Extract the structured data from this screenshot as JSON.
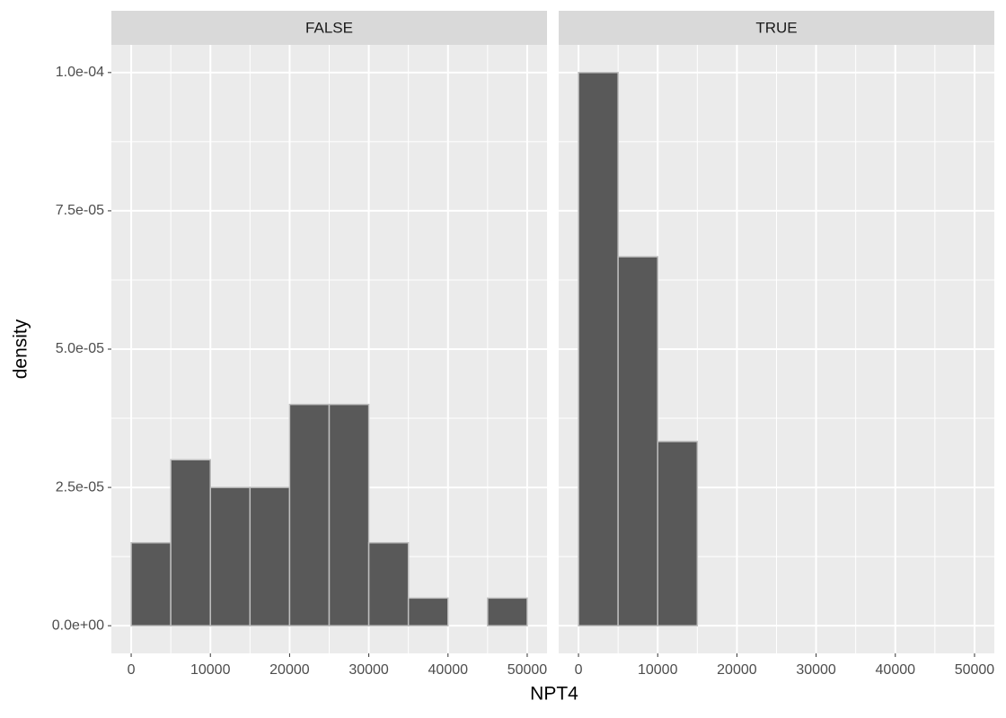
{
  "chart_data": {
    "type": "histogram",
    "x_label": "NPT4",
    "y_label": "density",
    "bins": [
      0,
      5000,
      10000,
      15000,
      20000,
      25000,
      30000,
      35000,
      40000,
      45000,
      50000
    ],
    "facets": [
      {
        "title": "FALSE",
        "values": [
          1.5e-05,
          3e-05,
          2.5e-05,
          2.5e-05,
          4e-05,
          4e-05,
          1.5e-05,
          5e-06,
          0,
          5e-06
        ]
      },
      {
        "title": "TRUE",
        "values": [
          0.0001,
          6.67e-05,
          3.33e-05,
          0,
          0,
          0,
          0,
          0,
          0,
          0
        ]
      }
    ],
    "color": "#595959",
    "outline": "#bebebe",
    "xlim": [
      -2500,
      52500
    ],
    "ylim": [
      -5e-06,
      0.000105
    ],
    "xticks": [
      0,
      10000,
      20000,
      30000,
      40000,
      50000
    ],
    "yticks": [
      {
        "value": 0,
        "label": "0.0e+00"
      },
      {
        "value": 2.5e-05,
        "label": "2.5e-05"
      },
      {
        "value": 5e-05,
        "label": "5.0e-05"
      },
      {
        "value": 7.5e-05,
        "label": "7.5e-05"
      },
      {
        "value": 0.0001,
        "label": "1.0e-04"
      }
    ],
    "grid": true
  }
}
